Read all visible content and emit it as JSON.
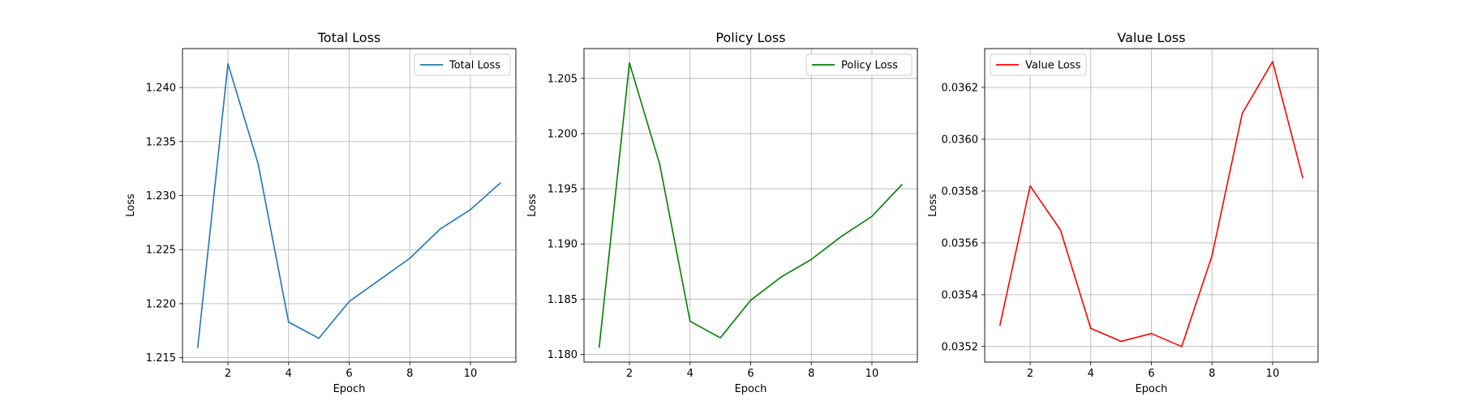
{
  "chart_data": [
    {
      "type": "line",
      "title": "Total Loss",
      "xlabel": "Epoch",
      "ylabel": "Loss",
      "grid": true,
      "legend": "top-right",
      "xlim": [
        0.5,
        11.5
      ],
      "ylim": [
        1.2146,
        1.2436
      ],
      "xticks": [
        2,
        4,
        6,
        8,
        10
      ],
      "yticks": [
        1.215,
        1.22,
        1.225,
        1.23,
        1.235,
        1.24
      ],
      "ytick_labels": [
        "1.215",
        "1.220",
        "1.225",
        "1.230",
        "1.235",
        "1.240"
      ],
      "series": [
        {
          "name": "Total Loss",
          "color": "#1f77b4",
          "x": [
            1,
            2,
            3,
            4,
            5,
            6,
            7,
            8,
            9,
            10,
            11
          ],
          "values": [
            1.2159,
            1.2422,
            1.2329,
            1.2183,
            1.2168,
            1.2202,
            1.2222,
            1.2242,
            1.2269,
            1.2287,
            1.2312
          ]
        }
      ]
    },
    {
      "type": "line",
      "title": "Policy Loss",
      "xlabel": "Epoch",
      "ylabel": "Loss",
      "grid": true,
      "legend": "top-right",
      "xlim": [
        0.5,
        11.5
      ],
      "ylim": [
        1.1793,
        1.2077
      ],
      "xticks": [
        2,
        4,
        6,
        8,
        10
      ],
      "yticks": [
        1.18,
        1.185,
        1.19,
        1.195,
        1.2,
        1.205
      ],
      "ytick_labels": [
        "1.180",
        "1.185",
        "1.190",
        "1.195",
        "1.200",
        "1.205"
      ],
      "series": [
        {
          "name": "Policy Loss",
          "color": "#008000",
          "x": [
            1,
            2,
            3,
            4,
            5,
            6,
            7,
            8,
            9,
            10,
            11
          ],
          "values": [
            1.1806,
            1.2064,
            1.1972,
            1.183,
            1.1815,
            1.1849,
            1.187,
            1.1886,
            1.1907,
            1.1925,
            1.1954
          ]
        }
      ]
    },
    {
      "type": "line",
      "title": "Value Loss",
      "xlabel": "Epoch",
      "ylabel": "Loss",
      "grid": true,
      "legend": "top-left",
      "xlim": [
        0.5,
        11.5
      ],
      "ylim": [
        0.03514,
        0.03635
      ],
      "xticks": [
        2,
        4,
        6,
        8,
        10
      ],
      "yticks": [
        0.0352,
        0.0354,
        0.0356,
        0.0358,
        0.036,
        0.0362
      ],
      "ytick_labels": [
        "0.0352",
        "0.0354",
        "0.0356",
        "0.0358",
        "0.0360",
        "0.0362"
      ],
      "series": [
        {
          "name": "Value Loss",
          "color": "#ff0000",
          "x": [
            1,
            2,
            3,
            4,
            5,
            6,
            7,
            8,
            9,
            10,
            11
          ],
          "values": [
            0.03528,
            0.03582,
            0.03565,
            0.03527,
            0.03522,
            0.03525,
            0.0352,
            0.03555,
            0.0361,
            0.0363,
            0.03585
          ]
        }
      ]
    }
  ]
}
